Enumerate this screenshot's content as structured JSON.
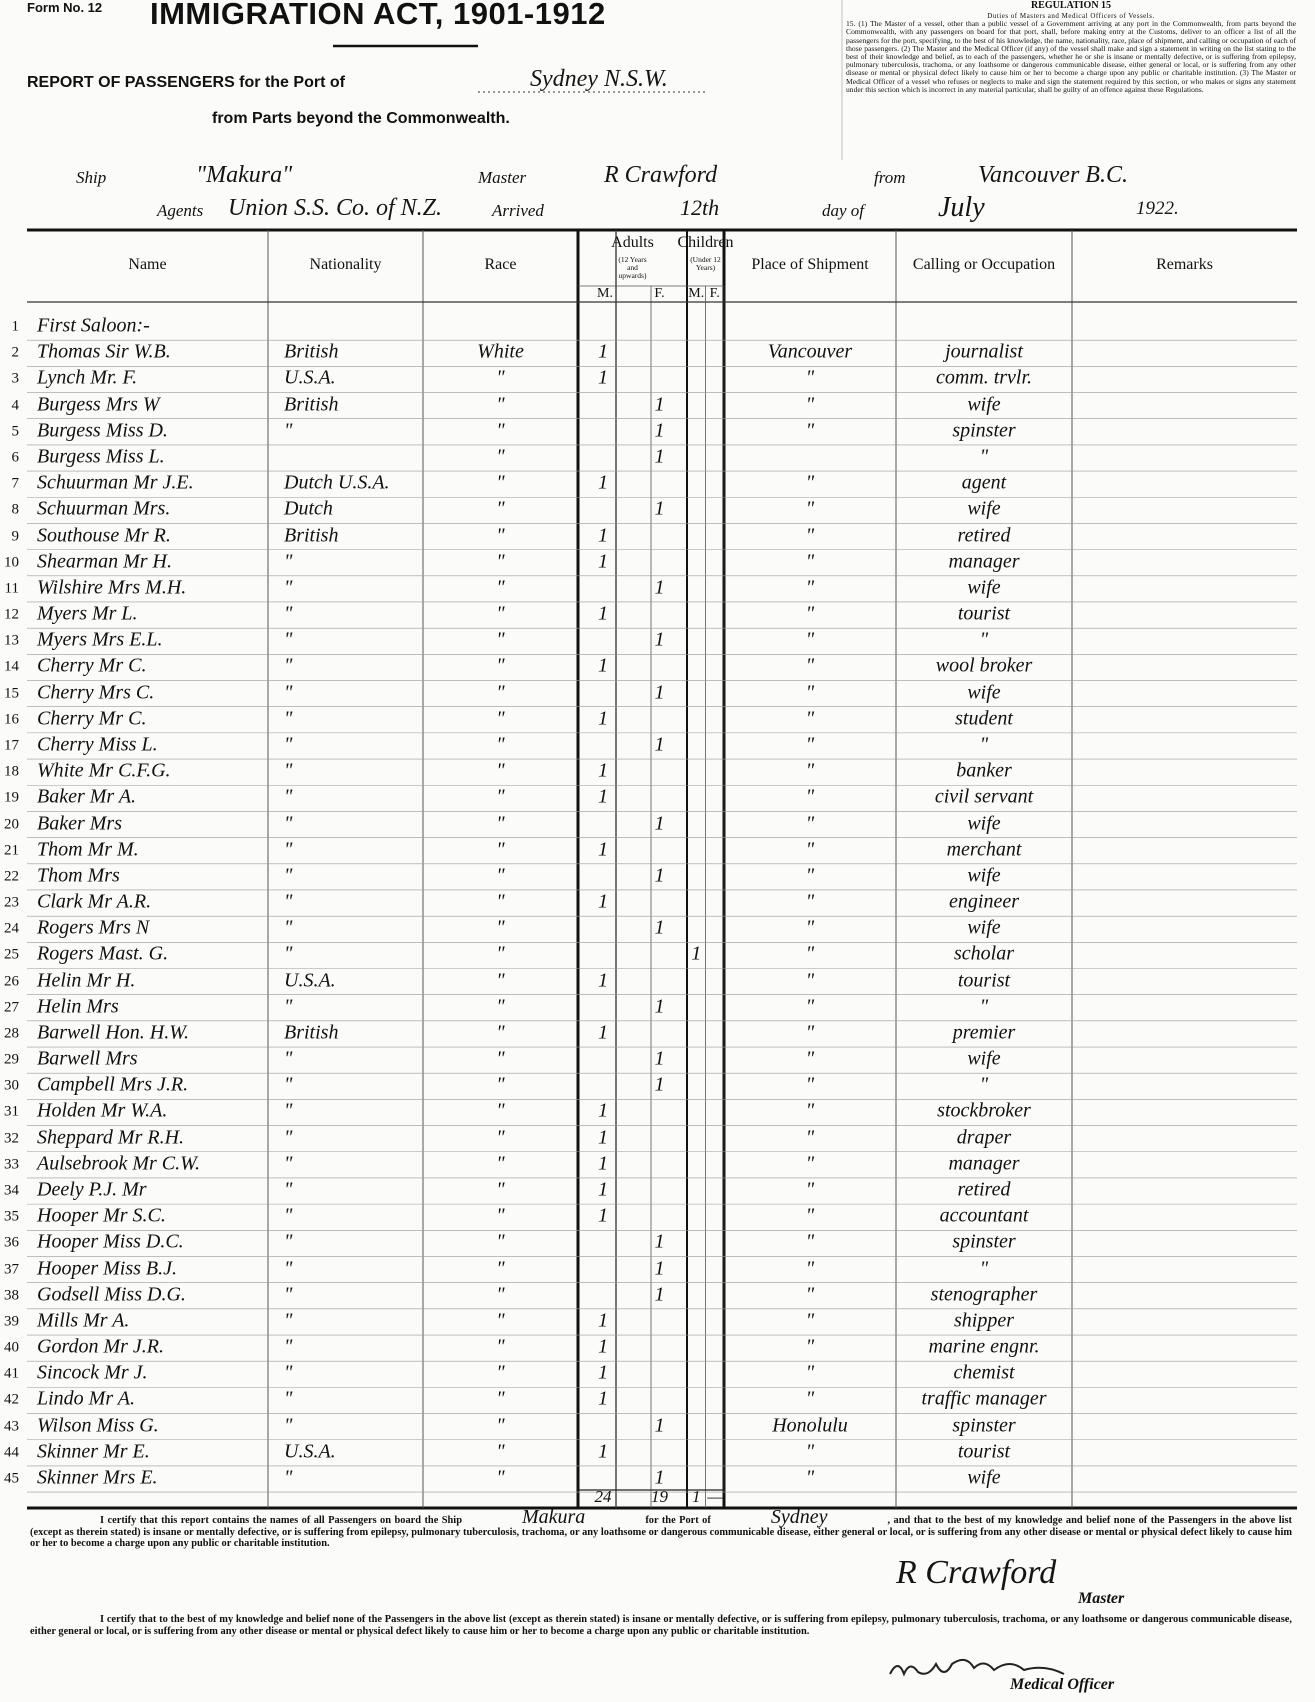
{
  "header": {
    "form_no": "Form No. 12",
    "title": "IMMIGRATION ACT, 1901-1912",
    "report_label": "REPORT OF PASSENGERS for the Port of",
    "port": "Sydney N.S.W.",
    "subtitle": "from Parts beyond the Commonwealth."
  },
  "regulation": {
    "title": "REGULATION 15",
    "subtitle": "Duties of Masters and Medical Officers of Vessels.",
    "text": "15. (1) The Master of a vessel, other than a public vessel of a Government arriving at any port in the Commonwealth, from parts beyond the Commonwealth, with any passengers on board for that port, shall, before making entry at the Customs, deliver to an officer a list of all the passengers for the port, specifying, to the best of his knowledge, the name, nationality, race, place of shipment, and calling or occupation of each of those passengers. (2) The Master and the Medical Officer (if any) of the vessel shall make and sign a statement in writing on the list stating to the best of their knowledge and belief, as to each of the passengers, whether he or she is insane or mentally defective, or is suffering from epilepsy, pulmonary tuberculosis, trachoma, or any loathsome or dangerous communicable disease, either general or local, or is suffering from any other disease or mental or physical defect likely to cause him or her to become a charge upon any public or charitable institution. (3) The Master or Medical Officer of a vessel who refuses or neglects to make and sign the statement required by this section, or who makes or signs any statement under this section which is incorrect in any material particular, shall be guilty of an offence against these Regulations."
  },
  "voyage": {
    "ship_label": "Ship",
    "ship": "\"Makura\"",
    "master_label": "Master",
    "master": "R Crawford",
    "from_label": "from",
    "from": "Vancouver B.C.",
    "agents_label": "Agents",
    "agents": "Union S.S. Co. of N.Z.",
    "arrived_label": "Arrived",
    "arrived_day": "12th",
    "day_of_label": "day of",
    "month": "July",
    "year": "1922."
  },
  "table": {
    "columns": {
      "name": "Name",
      "nationality": "Nationality",
      "race": "Race",
      "adults": "Adults",
      "adults_note": "(12 Years and upwards)",
      "children": "Children",
      "children_note": "(Under 12 Years)",
      "adult_m": "M.",
      "adult_f": "F.",
      "child_m": "M.",
      "child_f": "F.",
      "place": "Place of Shipment",
      "occupation": "Calling or Occupation",
      "remarks": "Remarks"
    },
    "rows": [
      {
        "no": "1",
        "name": "First Saloon:-"
      },
      {
        "no": "2",
        "name": "Thomas Sir W.B.",
        "nationality": "British",
        "race": "White",
        "adult_m": "1",
        "place": "Vancouver",
        "occupation": "journalist"
      },
      {
        "no": "3",
        "name": "Lynch Mr. F.",
        "nationality": "U.S.A.",
        "race": "\"",
        "adult_m": "1",
        "place": "\"",
        "occupation": "comm. trvlr."
      },
      {
        "no": "4",
        "name": "Burgess Mrs W",
        "nationality": "British",
        "race": "\"",
        "adult_f": "1",
        "place": "\"",
        "occupation": "wife"
      },
      {
        "no": "5",
        "name": "Burgess Miss D.",
        "nationality": "\"",
        "race": "\"",
        "adult_f": "1",
        "place": "\"",
        "occupation": "spinster"
      },
      {
        "no": "6",
        "name": "Burgess Miss L.",
        "race": "\"",
        "adult_f": "1",
        "occupation": "\""
      },
      {
        "no": "7",
        "name": "Schuurman Mr J.E.",
        "nationality": "Dutch U.S.A.",
        "race": "\"",
        "adult_m": "1",
        "place": "\"",
        "occupation": "agent"
      },
      {
        "no": "8",
        "name": "Schuurman Mrs.",
        "nationality": "Dutch",
        "race": "\"",
        "adult_f": "1",
        "place": "\"",
        "occupation": "wife"
      },
      {
        "no": "9",
        "name": "Southouse Mr R.",
        "nationality": "British",
        "race": "\"",
        "adult_m": "1",
        "place": "\"",
        "occupation": "retired"
      },
      {
        "no": "10",
        "name": "Shearman Mr H.",
        "nationality": "\"",
        "race": "\"",
        "adult_m": "1",
        "place": "\"",
        "occupation": "manager"
      },
      {
        "no": "11",
        "name": "Wilshire Mrs M.H.",
        "nationality": "\"",
        "race": "\"",
        "adult_f": "1",
        "place": "\"",
        "occupation": "wife"
      },
      {
        "no": "12",
        "name": "Myers Mr L.",
        "nationality": "\"",
        "race": "\"",
        "adult_m": "1",
        "place": "\"",
        "occupation": "tourist"
      },
      {
        "no": "13",
        "name": "Myers Mrs E.L.",
        "nationality": "\"",
        "race": "\"",
        "adult_f": "1",
        "place": "\"",
        "occupation": "\""
      },
      {
        "no": "14",
        "name": "Cherry Mr C.",
        "nationality": "\"",
        "race": "\"",
        "adult_m": "1",
        "place": "\"",
        "occupation": "wool broker"
      },
      {
        "no": "15",
        "name": "Cherry Mrs C.",
        "nationality": "\"",
        "race": "\"",
        "adult_f": "1",
        "place": "\"",
        "occupation": "wife"
      },
      {
        "no": "16",
        "name": "Cherry Mr C.",
        "nationality": "\"",
        "race": "\"",
        "adult_m": "1",
        "place": "\"",
        "occupation": "student"
      },
      {
        "no": "17",
        "name": "Cherry Miss L.",
        "nationality": "\"",
        "race": "\"",
        "adult_f": "1",
        "place": "\"",
        "occupation": "\""
      },
      {
        "no": "18",
        "name": "White Mr C.F.G.",
        "nationality": "\"",
        "race": "\"",
        "adult_m": "1",
        "place": "\"",
        "occupation": "banker"
      },
      {
        "no": "19",
        "name": "Baker Mr A.",
        "nationality": "\"",
        "race": "\"",
        "adult_m": "1",
        "place": "\"",
        "occupation": "civil servant"
      },
      {
        "no": "20",
        "name": "Baker Mrs",
        "nationality": "\"",
        "race": "\"",
        "adult_f": "1",
        "place": "\"",
        "occupation": "wife"
      },
      {
        "no": "21",
        "name": "Thom Mr M.",
        "nationality": "\"",
        "race": "\"",
        "adult_m": "1",
        "place": "\"",
        "occupation": "merchant"
      },
      {
        "no": "22",
        "name": "Thom Mrs",
        "nationality": "\"",
        "race": "\"",
        "adult_f": "1",
        "place": "\"",
        "occupation": "wife"
      },
      {
        "no": "23",
        "name": "Clark Mr A.R.",
        "nationality": "\"",
        "race": "\"",
        "adult_m": "1",
        "place": "\"",
        "occupation": "engineer"
      },
      {
        "no": "24",
        "name": "Rogers Mrs N",
        "nationality": "\"",
        "race": "\"",
        "adult_f": "1",
        "place": "\"",
        "occupation": "wife"
      },
      {
        "no": "25",
        "name": "Rogers Mast. G.",
        "nationality": "\"",
        "race": "\"",
        "child_m": "1",
        "place": "\"",
        "occupation": "scholar"
      },
      {
        "no": "26",
        "name": "Helin Mr H.",
        "nationality": "U.S.A.",
        "race": "\"",
        "adult_m": "1",
        "place": "\"",
        "occupation": "tourist"
      },
      {
        "no": "27",
        "name": "Helin Mrs",
        "nationality": "\"",
        "race": "\"",
        "adult_f": "1",
        "place": "\"",
        "occupation": "\""
      },
      {
        "no": "28",
        "name": "Barwell Hon. H.W.",
        "nationality": "British",
        "race": "\"",
        "adult_m": "1",
        "place": "\"",
        "occupation": "premier"
      },
      {
        "no": "29",
        "name": "Barwell Mrs",
        "nationality": "\"",
        "race": "\"",
        "adult_f": "1",
        "place": "\"",
        "occupation": "wife"
      },
      {
        "no": "30",
        "name": "Campbell Mrs J.R.",
        "nationality": "\"",
        "race": "\"",
        "adult_f": "1",
        "place": "\"",
        "occupation": "\""
      },
      {
        "no": "31",
        "name": "Holden Mr W.A.",
        "nationality": "\"",
        "race": "\"",
        "adult_m": "1",
        "place": "\"",
        "occupation": "stockbroker"
      },
      {
        "no": "32",
        "name": "Sheppard Mr R.H.",
        "nationality": "\"",
        "race": "\"",
        "adult_m": "1",
        "place": "\"",
        "occupation": "draper"
      },
      {
        "no": "33",
        "name": "Aulsebrook Mr C.W.",
        "nationality": "\"",
        "race": "\"",
        "adult_m": "1",
        "place": "\"",
        "occupation": "manager"
      },
      {
        "no": "34",
        "name": "Deely P.J. Mr",
        "nationality": "\"",
        "race": "\"",
        "adult_m": "1",
        "place": "\"",
        "occupation": "retired"
      },
      {
        "no": "35",
        "name": "Hooper Mr S.C.",
        "nationality": "\"",
        "race": "\"",
        "adult_m": "1",
        "place": "\"",
        "occupation": "accountant"
      },
      {
        "no": "36",
        "name": "Hooper Miss D.C.",
        "nationality": "\"",
        "race": "\"",
        "adult_f": "1",
        "place": "\"",
        "occupation": "spinster"
      },
      {
        "no": "37",
        "name": "Hooper Miss B.J.",
        "nationality": "\"",
        "race": "\"",
        "adult_f": "1",
        "place": "\"",
        "occupation": "\""
      },
      {
        "no": "38",
        "name": "Godsell Miss D.G.",
        "nationality": "\"",
        "race": "\"",
        "adult_f": "1",
        "place": "\"",
        "occupation": "stenographer"
      },
      {
        "no": "39",
        "name": "Mills Mr A.",
        "nationality": "\"",
        "race": "\"",
        "adult_m": "1",
        "place": "\"",
        "occupation": "shipper"
      },
      {
        "no": "40",
        "name": "Gordon Mr J.R.",
        "nationality": "\"",
        "race": "\"",
        "adult_m": "1",
        "place": "\"",
        "occupation": "marine engnr."
      },
      {
        "no": "41",
        "name": "Sincock Mr J.",
        "nationality": "\"",
        "race": "\"",
        "adult_m": "1",
        "place": "\"",
        "occupation": "chemist"
      },
      {
        "no": "42",
        "name": "Lindo Mr A.",
        "nationality": "\"",
        "race": "\"",
        "adult_m": "1",
        "place": "\"",
        "occupation": "traffic manager"
      },
      {
        "no": "43",
        "name": "Wilson Miss G.",
        "nationality": "\"",
        "race": "\"",
        "adult_f": "1",
        "place": "Honolulu",
        "occupation": "spinster"
      },
      {
        "no": "44",
        "name": "Skinner Mr E.",
        "nationality": "U.S.A.",
        "race": "\"",
        "adult_m": "1",
        "place": "\"",
        "occupation": "tourist"
      },
      {
        "no": "45",
        "name": "Skinner Mrs E.",
        "nationality": "\"",
        "race": "\"",
        "adult_f": "1",
        "place": "\"",
        "occupation": "wife"
      }
    ],
    "totals": {
      "adult_m": "24",
      "adult_f": "19",
      "child_m": "1",
      "child_f": "—"
    }
  },
  "certificates": {
    "master_start": "I certify that this report contains the names of all Passengers on board the Ship",
    "master_ship": "Makura",
    "master_port_label": "for the Port of",
    "master_port": "Sydney",
    "master_rest": ", and that to the best of my knowledge and belief none of the Passengers in the above list (except as therein stated) is insane or mentally defective, or is suffering from epilepsy, pulmonary tuberculosis, trachoma, or any loathsome or dangerous communicable disease, either general or local, or is suffering from any other disease or mental or physical defect likely to cause him or her to become a charge upon any public or charitable institution.",
    "master_signature": "R Crawford",
    "master_title": "Master",
    "medical_text": "I certify that to the best of my knowledge and belief none of the Passengers in the above list (except as therein stated) is insane or mentally defective, or is suffering from epilepsy, pulmonary tuberculosis, trachoma, or any loathsome or dangerous communicable disease, either general or local, or is suffering from any other disease or mental or physical defect likely to cause him or her to become a charge upon any public or charitable institution.",
    "medical_title": "Medical Officer"
  }
}
